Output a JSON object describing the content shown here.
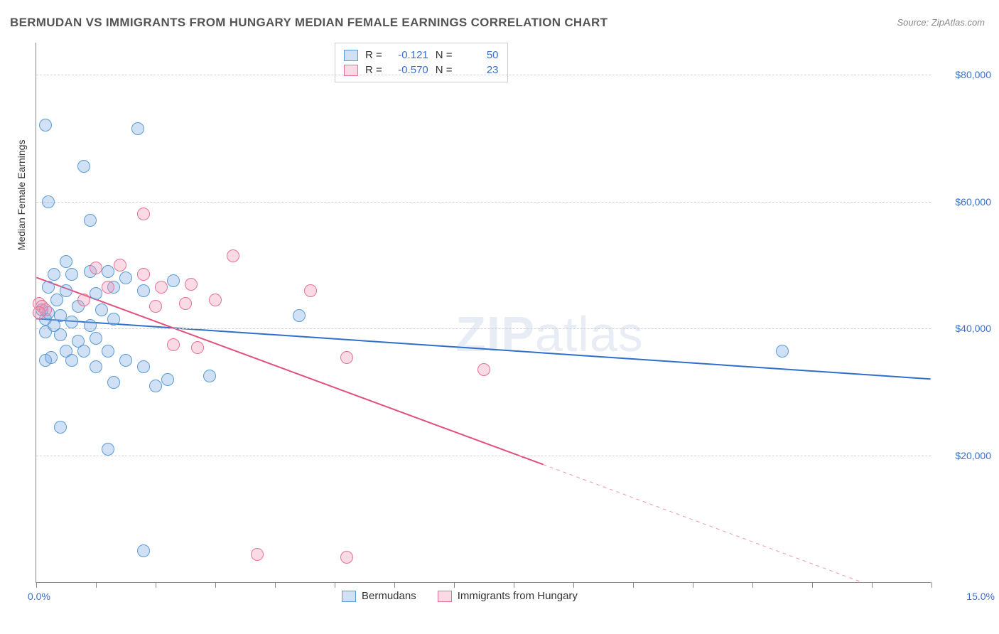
{
  "title": "BERMUDAN VS IMMIGRANTS FROM HUNGARY MEDIAN FEMALE EARNINGS CORRELATION CHART",
  "source": "Source: ZipAtlas.com",
  "watermark_bold": "ZIP",
  "watermark_rest": "atlas",
  "chart": {
    "type": "scatter",
    "y_title": "Median Female Earnings",
    "xlim": [
      0,
      15
    ],
    "ylim": [
      0,
      85000
    ],
    "x_tick_step": 1,
    "y_gridlines": [
      20000,
      40000,
      60000,
      80000
    ],
    "y_labels": [
      "$20,000",
      "$40,000",
      "$60,000",
      "$80,000"
    ],
    "x_label_min": "0.0%",
    "x_label_max": "15.0%",
    "background_color": "#ffffff",
    "grid_color": "#d0d0d0",
    "axis_color": "#888888",
    "marker_radius": 9,
    "marker_stroke_width": 1.5,
    "trend_line_width": 2,
    "series": [
      {
        "name": "Bermudans",
        "fill": "rgba(120,170,230,0.35)",
        "stroke": "#5a9bd5",
        "line_color": "#2e6fc9",
        "R": "-0.121",
        "N": "50",
        "trend": {
          "x1": 0,
          "y1": 41500,
          "x2": 15,
          "y2": 32000,
          "dash_after_x": 15
        },
        "points": [
          [
            0.15,
            72000
          ],
          [
            1.7,
            71500
          ],
          [
            0.8,
            65500
          ],
          [
            0.2,
            60000
          ],
          [
            0.9,
            57000
          ],
          [
            0.3,
            48500
          ],
          [
            0.6,
            48500
          ],
          [
            0.9,
            49000
          ],
          [
            1.2,
            49000
          ],
          [
            1.5,
            48000
          ],
          [
            0.5,
            46000
          ],
          [
            1.0,
            45500
          ],
          [
            1.3,
            46500
          ],
          [
            1.8,
            46000
          ],
          [
            2.3,
            47500
          ],
          [
            0.1,
            43000
          ],
          [
            0.2,
            42500
          ],
          [
            0.4,
            42000
          ],
          [
            0.15,
            41500
          ],
          [
            0.3,
            40500
          ],
          [
            0.6,
            41000
          ],
          [
            0.9,
            40500
          ],
          [
            1.3,
            41500
          ],
          [
            0.15,
            39500
          ],
          [
            0.4,
            39000
          ],
          [
            0.7,
            38000
          ],
          [
            1.0,
            38500
          ],
          [
            0.5,
            36500
          ],
          [
            0.8,
            36500
          ],
          [
            1.2,
            36500
          ],
          [
            0.25,
            35500
          ],
          [
            0.6,
            35000
          ],
          [
            0.15,
            35000
          ],
          [
            1.5,
            35000
          ],
          [
            1.0,
            34000
          ],
          [
            1.8,
            34000
          ],
          [
            2.2,
            32000
          ],
          [
            2.9,
            32500
          ],
          [
            1.3,
            31500
          ],
          [
            2.0,
            31000
          ],
          [
            0.4,
            24500
          ],
          [
            1.2,
            21000
          ],
          [
            1.8,
            5000
          ],
          [
            12.5,
            36500
          ],
          [
            4.4,
            42000
          ],
          [
            0.2,
            46500
          ],
          [
            0.35,
            44500
          ],
          [
            0.7,
            43500
          ],
          [
            1.1,
            43000
          ],
          [
            0.5,
            50500
          ]
        ]
      },
      {
        "name": "Immigrants from Hungary",
        "fill": "rgba(240,150,180,0.35)",
        "stroke": "#e27396",
        "line_color": "#e24f7c",
        "R": "-0.570",
        "N": "23",
        "trend": {
          "x1": 0,
          "y1": 48000,
          "x2": 15,
          "y2": -4000,
          "dash_after_x": 8.5
        },
        "points": [
          [
            0.05,
            44000
          ],
          [
            0.1,
            43500
          ],
          [
            0.15,
            43000
          ],
          [
            0.05,
            42500
          ],
          [
            1.8,
            58000
          ],
          [
            1.0,
            49500
          ],
          [
            1.4,
            50000
          ],
          [
            1.8,
            48500
          ],
          [
            1.2,
            46500
          ],
          [
            2.1,
            46500
          ],
          [
            2.6,
            47000
          ],
          [
            0.8,
            44500
          ],
          [
            3.3,
            51500
          ],
          [
            4.6,
            46000
          ],
          [
            2.0,
            43500
          ],
          [
            2.5,
            44000
          ],
          [
            3.0,
            44500
          ],
          [
            2.3,
            37500
          ],
          [
            2.7,
            37000
          ],
          [
            5.2,
            35500
          ],
          [
            7.5,
            33500
          ],
          [
            3.7,
            4500
          ],
          [
            5.2,
            4000
          ]
        ]
      }
    ]
  },
  "stats_box": {
    "r_label": "R =",
    "n_label": "N ="
  },
  "legend": {
    "series1": "Bermudans",
    "series2": "Immigrants from Hungary"
  }
}
